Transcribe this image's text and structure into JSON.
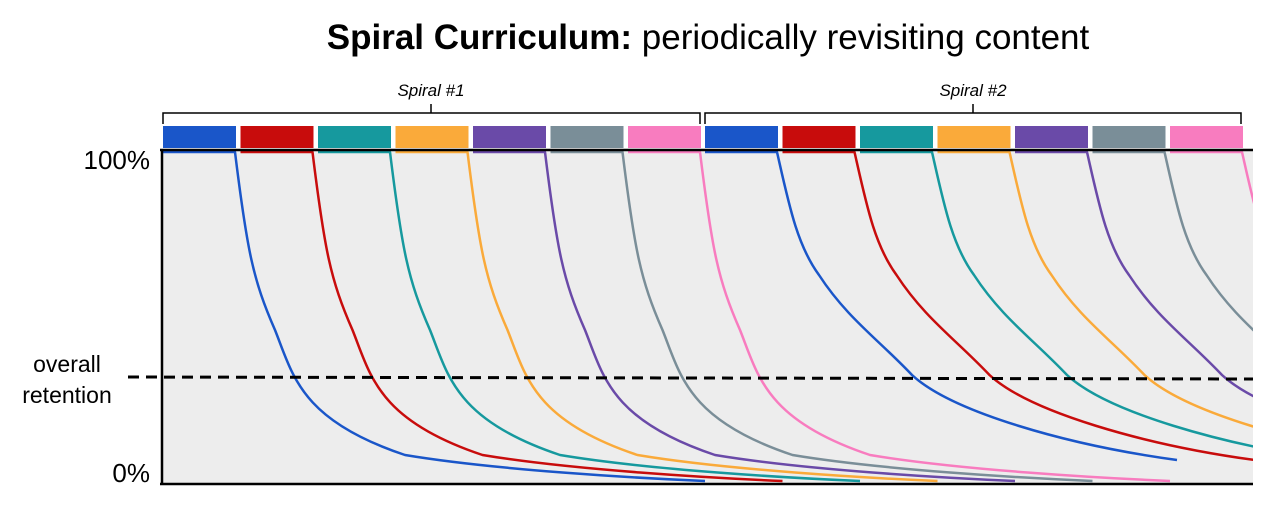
{
  "title": {
    "bold": "Spiral Curriculum:",
    "rest": " periodically revisiting content"
  },
  "y_axis": {
    "top_label": "100%",
    "bottom_label": "0%",
    "mid_label": "overall retention"
  },
  "spirals": [
    {
      "label": "Spiral #1"
    },
    {
      "label": "Spiral #2"
    }
  ],
  "topic_colors": [
    "#1a56c9",
    "#c80c0c",
    "#16999e",
    "#faaa3a",
    "#6a4aa8",
    "#7a8e98",
    "#f87cbf"
  ],
  "plot_background": "#ededed"
}
